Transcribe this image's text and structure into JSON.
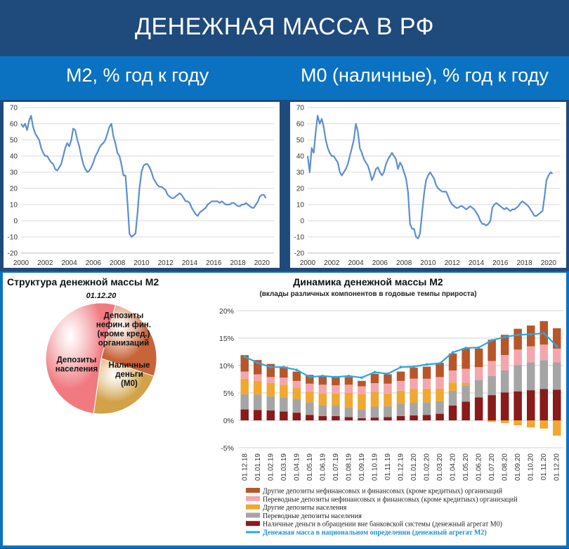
{
  "header": {
    "title": "ДЕНЕЖНАЯ МАССА В РФ"
  },
  "subtitles": {
    "left": "М2, % год к году",
    "right": "М0 (наличные), % год к году"
  },
  "colors": {
    "line": "#5b8fcf",
    "banner": "#1f4a7c",
    "band": "#0b72c2"
  },
  "pie_title": "Структура денежной массы М2",
  "pie_date": "01.12.20",
  "bar_title": "Динамика денежной массы М2",
  "bar_subtitle": "(вклады различных компонентов в годовые темпы прироста)",
  "chart_data": [
    {
      "type": "line",
      "series": [
        {
          "values_y": [
            60,
            58,
            60,
            56,
            62,
            65,
            58,
            54,
            52,
            50,
            45,
            42,
            40,
            40,
            38,
            36,
            35,
            32,
            31,
            33,
            35,
            40,
            45,
            48,
            46,
            50,
            57,
            56,
            50,
            46,
            40,
            35,
            32,
            30,
            31,
            33,
            36,
            40,
            42,
            45,
            47,
            48,
            50,
            54,
            58,
            60,
            52,
            48,
            42,
            40,
            35,
            28,
            28,
            12,
            -8,
            -10,
            -9,
            -8,
            5,
            20,
            30,
            34,
            35,
            35,
            33,
            30,
            26,
            24,
            22,
            21,
            21,
            20,
            19,
            16,
            15,
            14,
            14,
            15,
            16,
            17,
            16,
            14,
            12,
            12,
            11,
            8,
            6,
            4,
            3,
            5,
            6,
            7,
            8,
            10,
            11,
            12,
            12,
            12,
            12,
            11,
            12,
            11,
            10,
            10,
            10,
            11,
            11,
            10,
            9,
            9,
            10,
            10,
            11,
            10,
            9,
            8,
            8,
            10,
            12,
            15,
            16,
            16,
            14
          ]
        }
      ],
      "x": [
        2000,
        2000.17,
        2000.33,
        2000.5,
        2000.67,
        2000.83,
        2001,
        2001.17,
        2001.33,
        2001.5,
        2001.67,
        2001.83,
        2002,
        2002.17,
        2002.33,
        2002.5,
        2002.67,
        2002.83,
        2003,
        2003.17,
        2003.33,
        2003.5,
        2003.67,
        2003.83,
        2004,
        2004.17,
        2004.33,
        2004.5,
        2004.67,
        2004.83,
        2005,
        2005.17,
        2005.33,
        2005.5,
        2005.67,
        2005.83,
        2006,
        2006.17,
        2006.33,
        2006.5,
        2006.67,
        2006.83,
        2007,
        2007.17,
        2007.33,
        2007.5,
        2007.67,
        2007.83,
        2008,
        2008.17,
        2008.33,
        2008.5,
        2008.67,
        2008.83,
        2009,
        2009.17,
        2009.33,
        2009.5,
        2009.67,
        2009.83,
        2010,
        2010.17,
        2010.33,
        2010.5,
        2010.67,
        2010.83,
        2011,
        2011.17,
        2011.33,
        2011.5,
        2011.67,
        2011.83,
        2012,
        2012.17,
        2012.33,
        2012.5,
        2012.67,
        2012.83,
        2013,
        2013.17,
        2013.33,
        2013.5,
        2013.67,
        2013.83,
        2014,
        2014.17,
        2014.33,
        2014.5,
        2014.67,
        2014.83,
        2015,
        2015.17,
        2015.33,
        2015.5,
        2015.67,
        2015.83,
        2016,
        2016.17,
        2016.33,
        2016.5,
        2016.67,
        2016.83,
        2017,
        2017.17,
        2017.33,
        2017.5,
        2017.67,
        2017.83,
        2018,
        2018.17,
        2018.33,
        2018.5,
        2018.67,
        2018.83,
        2019,
        2019.17,
        2019.33,
        2019.5,
        2019.67,
        2019.83,
        2020,
        2020.17,
        2020.33,
        2020.5,
        2020.67,
        2020.83
      ],
      "ylim": [
        -20,
        70
      ],
      "yticks": [
        "-20",
        "-10",
        "0",
        "10",
        "20",
        "30",
        "40",
        "50",
        "60",
        "70"
      ],
      "xticks": [
        "2000",
        "2002",
        "2004",
        "2006",
        "2008",
        "2010",
        "2012",
        "2014",
        "2016",
        "2018",
        "2020"
      ],
      "grid": true
    },
    {
      "type": "line",
      "series": [
        {
          "values_y": [
            40,
            30,
            45,
            42,
            55,
            65,
            60,
            63,
            58,
            50,
            45,
            42,
            40,
            40,
            38,
            36,
            30,
            28,
            30,
            32,
            35,
            40,
            45,
            50,
            60,
            55,
            45,
            42,
            38,
            36,
            34,
            30,
            25,
            28,
            32,
            33,
            30,
            28,
            30,
            35,
            38,
            40,
            42,
            40,
            38,
            32,
            36,
            34,
            30,
            26,
            18,
            -2,
            -5,
            -5,
            -10,
            -11,
            -8,
            5,
            17,
            25,
            28,
            30,
            28,
            26,
            22,
            20,
            19,
            18,
            18,
            18,
            15,
            12,
            10,
            9,
            8,
            8,
            9,
            9,
            8,
            7,
            8,
            9,
            8,
            7,
            5,
            3,
            0,
            -2,
            -2,
            -3,
            -2,
            0,
            8,
            10,
            11,
            10,
            9,
            8,
            7,
            8,
            7,
            6,
            7,
            7,
            8,
            9,
            11,
            12,
            11,
            10,
            9,
            7,
            5,
            3,
            3,
            4,
            5,
            6,
            15,
            25,
            28,
            30,
            29
          ]
        }
      ],
      "x": [
        2000,
        2000.17,
        2000.33,
        2000.5,
        2000.67,
        2000.83,
        2001,
        2001.17,
        2001.33,
        2001.5,
        2001.67,
        2001.83,
        2002,
        2002.17,
        2002.33,
        2002.5,
        2002.67,
        2002.83,
        2003,
        2003.17,
        2003.33,
        2003.5,
        2003.67,
        2003.83,
        2004,
        2004.17,
        2004.33,
        2004.5,
        2004.67,
        2004.83,
        2005,
        2005.17,
        2005.33,
        2005.5,
        2005.67,
        2005.83,
        2006,
        2006.17,
        2006.33,
        2006.5,
        2006.67,
        2006.83,
        2007,
        2007.17,
        2007.33,
        2007.5,
        2007.67,
        2007.83,
        2008,
        2008.17,
        2008.33,
        2008.5,
        2008.67,
        2008.83,
        2009,
        2009.17,
        2009.33,
        2009.5,
        2009.67,
        2009.83,
        2010,
        2010.17,
        2010.33,
        2010.5,
        2010.67,
        2010.83,
        2011,
        2011.17,
        2011.33,
        2011.5,
        2011.67,
        2011.83,
        2012,
        2012.17,
        2012.33,
        2012.5,
        2012.67,
        2012.83,
        2013,
        2013.17,
        2013.33,
        2013.5,
        2013.67,
        2013.83,
        2014,
        2014.17,
        2014.33,
        2014.5,
        2014.67,
        2014.83,
        2015,
        2015.17,
        2015.33,
        2015.5,
        2015.67,
        2015.83,
        2016,
        2016.17,
        2016.33,
        2016.5,
        2016.67,
        2016.83,
        2017,
        2017.17,
        2017.33,
        2017.5,
        2017.67,
        2017.83,
        2018,
        2018.17,
        2018.33,
        2018.5,
        2018.67,
        2018.83,
        2019,
        2019.17,
        2019.33,
        2019.5,
        2019.67,
        2019.83,
        2020,
        2020.17,
        2020.33,
        2020.5,
        2020.67,
        2020.83
      ],
      "ylim": [
        -20,
        70
      ],
      "yticks": [
        "-20",
        "-10",
        "0",
        "10",
        "20",
        "30",
        "40",
        "50",
        "60",
        "70"
      ],
      "xticks": [
        "2000",
        "2002",
        "2004",
        "2006",
        "2008",
        "2010",
        "2012",
        "2014",
        "2016",
        "2018",
        "2020"
      ],
      "grid": true
    },
    {
      "type": "pie",
      "labels": [
        "Депозиты нефин.и фин. (кроме кред.) организаций",
        "Наличные деньги (М0)",
        "Депозиты населения"
      ],
      "values": [
        26,
        22,
        52
      ],
      "colors": [
        "#c8643a",
        "#d2a24a",
        "#f07a80"
      ]
    },
    {
      "type": "bar",
      "stacked": true,
      "categories": [
        "01.12.18",
        "01.01.19",
        "01.02.19",
        "01.03.19",
        "01.04.19",
        "01.05.19",
        "01.06.19",
        "01.07.19",
        "01.08.19",
        "01.09.19",
        "01.10.19",
        "01.11.19",
        "01.12.19",
        "01.01.20",
        "01.02.20",
        "01.03.20",
        "01.04.20",
        "01.05.20",
        "01.06.20",
        "01.07.20",
        "01.08.20",
        "01.09.20",
        "01.10.20",
        "01.11.20",
        "01.12.20"
      ],
      "ylim": [
        -5,
        20
      ],
      "yticks": [
        "-5%",
        "0%",
        "5%",
        "10%",
        "15%",
        "20%"
      ],
      "series": [
        {
          "name": "Наличные деньги в обращении вне банковской системы (денежный агрегат М0)",
          "color": "#8b1a1a",
          "values": [
            2.0,
            1.9,
            1.8,
            1.6,
            1.4,
            1.0,
            0.8,
            0.8,
            0.6,
            0.4,
            0.5,
            0.6,
            0.8,
            0.9,
            1.0,
            1.2,
            2.7,
            3.4,
            4.2,
            4.6,
            5.1,
            5.3,
            5.5,
            5.7,
            5.6
          ]
        },
        {
          "name": "Переводные депозиты населения",
          "color": "#a5a5a5",
          "values": [
            2.8,
            2.8,
            2.6,
            2.6,
            2.5,
            2.3,
            2.0,
            1.9,
            1.8,
            1.6,
            2.0,
            2.0,
            2.3,
            2.3,
            2.3,
            2.3,
            2.7,
            2.9,
            3.2,
            3.5,
            4.0,
            4.8,
            5.1,
            5.3,
            5.0
          ]
        },
        {
          "name": "Другие депозиты населения",
          "color": "#f0a830",
          "values": [
            2.8,
            2.5,
            2.4,
            2.3,
            2.1,
            2.0,
            2.1,
            2.2,
            2.6,
            2.8,
            2.7,
            2.3,
            2.3,
            2.5,
            2.5,
            2.3,
            1.5,
            0.5,
            0.0,
            -0.3,
            -0.5,
            -0.9,
            -1.3,
            -1.5,
            -2.8
          ]
        },
        {
          "name": "Переводные депозиты нефинансовых и финансовых (кроме кредитных) организаций",
          "color": "#f4a6ae",
          "values": [
            1.3,
            1.2,
            1.1,
            1.3,
            1.2,
            1.4,
            1.6,
            1.5,
            1.5,
            1.4,
            1.6,
            1.8,
            1.8,
            1.9,
            1.8,
            2.1,
            2.2,
            2.6,
            2.3,
            2.7,
            2.8,
            2.8,
            2.9,
            2.8,
            2.5
          ]
        },
        {
          "name": "Другие депозиты нефинансовых и финансовых (кроме кредитных) организаций",
          "color": "#b8562a",
          "values": [
            3.0,
            2.6,
            2.4,
            2.0,
            1.7,
            1.6,
            1.5,
            1.6,
            1.4,
            1.0,
            1.7,
            1.7,
            1.7,
            2.0,
            2.2,
            2.6,
            3.1,
            3.7,
            3.4,
            3.9,
            3.7,
            3.8,
            3.8,
            4.3,
            3.7
          ]
        }
      ],
      "line": {
        "name": "Денежная масса в национальном определении (денежный агрегат М2)",
        "color": "#29a8e0",
        "values": [
          11.6,
          10.5,
          9.7,
          9.7,
          9.2,
          7.9,
          8.1,
          7.9,
          8.1,
          7.8,
          8.8,
          8.5,
          9.7,
          9.8,
          10.2,
          10.4,
          12.4,
          13.2,
          13.3,
          14.6,
          15.2,
          15.6,
          15.7,
          15.9,
          13.5
        ]
      }
    }
  ],
  "legend": [
    "Другие депозиты нефинансовых и финансовых (кроме кредитных)  организаций",
    "Переводные депозиты нефинансовых и финансовых (кроме кредитных)  организаций",
    "Другие депозиты населения",
    "Переводные депозиты населения",
    "Наличные деньги в обращении вне банковской системы (денежный агрегат М0)",
    "Денежная масса в национальном определении  (денежный агрегат М2)"
  ]
}
